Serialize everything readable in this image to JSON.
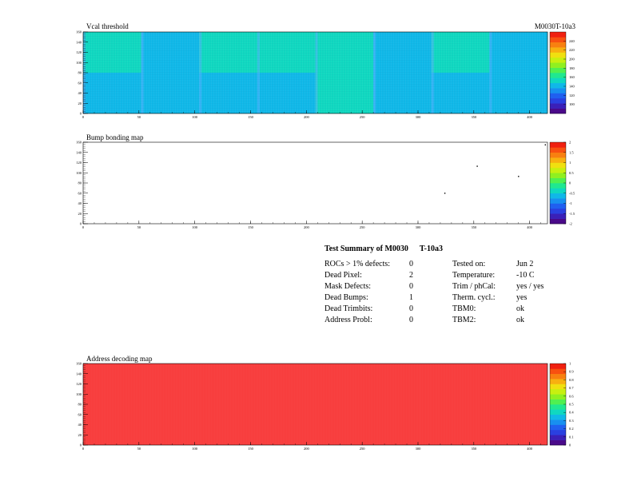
{
  "header": {
    "module_id": "M0030T-10a3"
  },
  "summary": {
    "title": "Test Summary of M0030",
    "test_tag": "T-10a3",
    "left": [
      {
        "label": "ROCs > 1% defects:",
        "value": "0"
      },
      {
        "label": "Dead Pixel:",
        "value": "2"
      },
      {
        "label": "Mask Defects:",
        "value": "0"
      },
      {
        "label": "Dead Bumps:",
        "value": "1"
      },
      {
        "label": "Dead Trimbits:",
        "value": "0"
      },
      {
        "label": "Address Probl:",
        "value": "0"
      }
    ],
    "right": [
      {
        "label": "Tested on:",
        "value": "Jun 2"
      },
      {
        "label": "Temperature:",
        "value": "-10 C"
      },
      {
        "label": "Trim / phCal:",
        "value": "yes / yes"
      },
      {
        "label": "Therm. cycl.:",
        "value": "yes"
      },
      {
        "label": "TBM0:",
        "value": "ok"
      },
      {
        "label": "TBM2:",
        "value": "ok"
      }
    ]
  },
  "chart_data": [
    {
      "type": "heatmap",
      "title": "Vcal threshold",
      "xlim": [
        0,
        416
      ],
      "ylim": [
        0,
        160
      ],
      "x_ticks": [
        0,
        50,
        100,
        150,
        200,
        250,
        300,
        350,
        400
      ],
      "x_tick_labels": [
        "0",
        "50",
        "100",
        "150",
        "200",
        "250",
        "300",
        "350",
        "400"
      ],
      "y_ticks": [
        0,
        20,
        40,
        60,
        80,
        100,
        120,
        140,
        160
      ],
      "y_tick_labels": [
        "0",
        "20",
        "40",
        "60",
        "80",
        "100",
        "120",
        "140",
        "160"
      ],
      "z_range": [
        80,
        260
      ],
      "z_tick_labels": [
        "100",
        "120",
        "140",
        "160",
        "180",
        "200",
        "220",
        "240"
      ],
      "roc_grid": {
        "cols": 8,
        "rows": 2
      },
      "roc_mean_values": [
        [
          150,
          140,
          150,
          148,
          152,
          140,
          150,
          140
        ],
        [
          145,
          138,
          142,
          140,
          146,
          138,
          144,
          138
        ]
      ]
    },
    {
      "type": "heatmap",
      "title": "Bump bonding map",
      "xlim": [
        0,
        416
      ],
      "ylim": [
        0,
        160
      ],
      "x_ticks": [
        0,
        50,
        100,
        150,
        200,
        250,
        300,
        350,
        400
      ],
      "x_tick_labels": [
        "0",
        "50",
        "100",
        "150",
        "200",
        "250",
        "300",
        "350",
        "400"
      ],
      "y_ticks": [
        0,
        20,
        40,
        60,
        80,
        100,
        120,
        140,
        160
      ],
      "y_tick_labels": [
        "0",
        "20",
        "40",
        "60",
        "80",
        "100",
        "120",
        "140",
        "160"
      ],
      "z_range": [
        -2,
        2
      ],
      "z_tick_labels": [
        "-2",
        "-1.5",
        "-1",
        "-0.5",
        "0",
        "0.5",
        "1",
        "1.5",
        "2"
      ],
      "points": [
        {
          "x": 324,
          "y": 60
        },
        {
          "x": 353,
          "y": 113
        },
        {
          "x": 390,
          "y": 93
        },
        {
          "x": 414,
          "y": 155
        }
      ]
    },
    {
      "type": "heatmap",
      "title": "Address decoding map",
      "xlim": [
        0,
        416
      ],
      "ylim": [
        0,
        160
      ],
      "x_ticks": [
        0,
        50,
        100,
        150,
        200,
        250,
        300,
        350,
        400
      ],
      "x_tick_labels": [
        "0",
        "50",
        "100",
        "150",
        "200",
        "250",
        "300",
        "350",
        "400"
      ],
      "y_ticks": [
        0,
        20,
        40,
        60,
        80,
        100,
        120,
        140,
        160
      ],
      "y_tick_labels": [
        "0",
        "20",
        "40",
        "60",
        "80",
        "100",
        "120",
        "140",
        "160"
      ],
      "z_range": [
        0,
        1
      ],
      "z_tick_labels": [
        "0",
        "0.1",
        "0.2",
        "0.3",
        "0.4",
        "0.5",
        "0.6",
        "0.7",
        "0.8",
        "0.9",
        "1"
      ],
      "fill_value": 1
    }
  ],
  "colors": {
    "palette": [
      "#4a0a8a",
      "#3a20b8",
      "#2a40e0",
      "#2060f0",
      "#1890f0",
      "#10b8e8",
      "#10d8c0",
      "#20e890",
      "#50f050",
      "#90f020",
      "#c8f010",
      "#f0e010",
      "#f8b010",
      "#f88010",
      "#f85010",
      "#f02010"
    ]
  }
}
